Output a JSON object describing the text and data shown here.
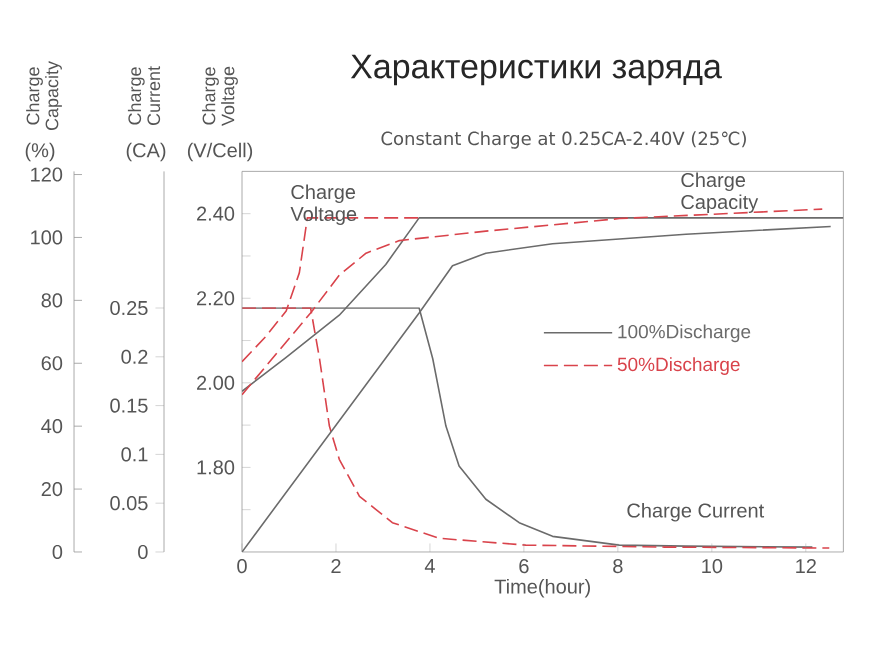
{
  "chart_data": {
    "type": "line",
    "title": "Характеристики заряда",
    "subtitle": "Constant Charge at 0.25CA-2.40V  (25℃)",
    "xlabel": "Time(hour)",
    "ylabel": "Charge Voltage",
    "y2label": "Charge Current",
    "y3label": "Charge Capacity",
    "annotations": [
      "Charge Voltage",
      "Charge Capacity",
      "Charge Current",
      "(%)",
      "(CA)",
      "(V/Cell)"
    ],
    "xlim": [
      0,
      12.8
    ],
    "xticks": [
      0,
      2,
      4,
      6,
      8,
      10,
      12
    ],
    "ylim": [
      1.6,
      2.5
    ],
    "yticks": [
      {
        "value": 1.7,
        "label": null
      },
      {
        "value": 1.8,
        "label": "1.80"
      },
      {
        "value": 1.9,
        "label": null
      },
      {
        "value": 2.0,
        "label": "2.00"
      },
      {
        "value": 2.1,
        "label": null
      },
      {
        "value": 2.2,
        "label": "2.20"
      },
      {
        "value": 2.3,
        "label": null
      },
      {
        "value": 2.4,
        "label": "2.40"
      }
    ],
    "y2lim": [
      0,
      0.39
    ],
    "y2ticks": [
      0,
      0.05,
      0.1,
      0.15,
      0.2,
      0.25
    ],
    "y3lim": [
      0,
      121
    ],
    "y3ticks": [
      0,
      20,
      40,
      60,
      80,
      100,
      120
    ],
    "legend": "right",
    "series": [
      {
        "name": "100%Discharge",
        "color": "#6b6b6b",
        "line_style": "solid",
        "axis": "y",
        "x": [
          0,
          0.94,
          2.07,
          3.06,
          3.77,
          12.8
        ],
        "values": [
          1.98,
          2.06,
          2.16,
          2.28,
          2.39,
          2.39
        ]
      },
      {
        "name": "50%Discharge",
        "color": "#d9434b",
        "line_style": "dashed",
        "axis": "y",
        "x": [
          0,
          0.51,
          0.94,
          1.22,
          1.39,
          3.77
        ],
        "values": [
          2.05,
          2.11,
          2.17,
          2.26,
          2.39,
          2.39
        ]
      },
      {
        "color": "#6b6b6b",
        "line_style": "solid",
        "axis": "y2",
        "x": [
          0,
          3.77,
          4.06,
          4.34,
          4.62,
          5.19,
          5.9,
          6.61,
          8.03,
          9.45,
          12.14
        ],
        "values": [
          0.25,
          0.25,
          0.198,
          0.129,
          0.088,
          0.054,
          0.03,
          0.016,
          0.007,
          0.006,
          0.005
        ]
      },
      {
        "color": "#d9434b",
        "line_style": "dashed",
        "axis": "y2",
        "x": [
          0,
          1.46,
          1.65,
          1.86,
          2.07,
          2.5,
          3.2,
          4.2,
          6.04,
          9,
          12.5
        ],
        "values": [
          0.25,
          0.25,
          0.198,
          0.129,
          0.095,
          0.057,
          0.03,
          0.014,
          0.007,
          0.005,
          0.004
        ]
      },
      {
        "color": "#6b6b6b",
        "line_style": "solid",
        "axis": "y3",
        "x": [
          0,
          3.77,
          4.48,
          5.19,
          6.61,
          9.45,
          12.53
        ],
        "values": [
          0,
          76,
          91,
          95,
          98,
          101,
          103.5
        ]
      },
      {
        "color": "#d9434b",
        "line_style": "dashed",
        "axis": "y3",
        "x": [
          0,
          1.46,
          2.07,
          2.64,
          3.35,
          5.19,
          8.03,
          12.35
        ],
        "values": [
          50,
          76,
          88,
          95,
          99,
          102,
          106,
          109
        ]
      }
    ]
  }
}
